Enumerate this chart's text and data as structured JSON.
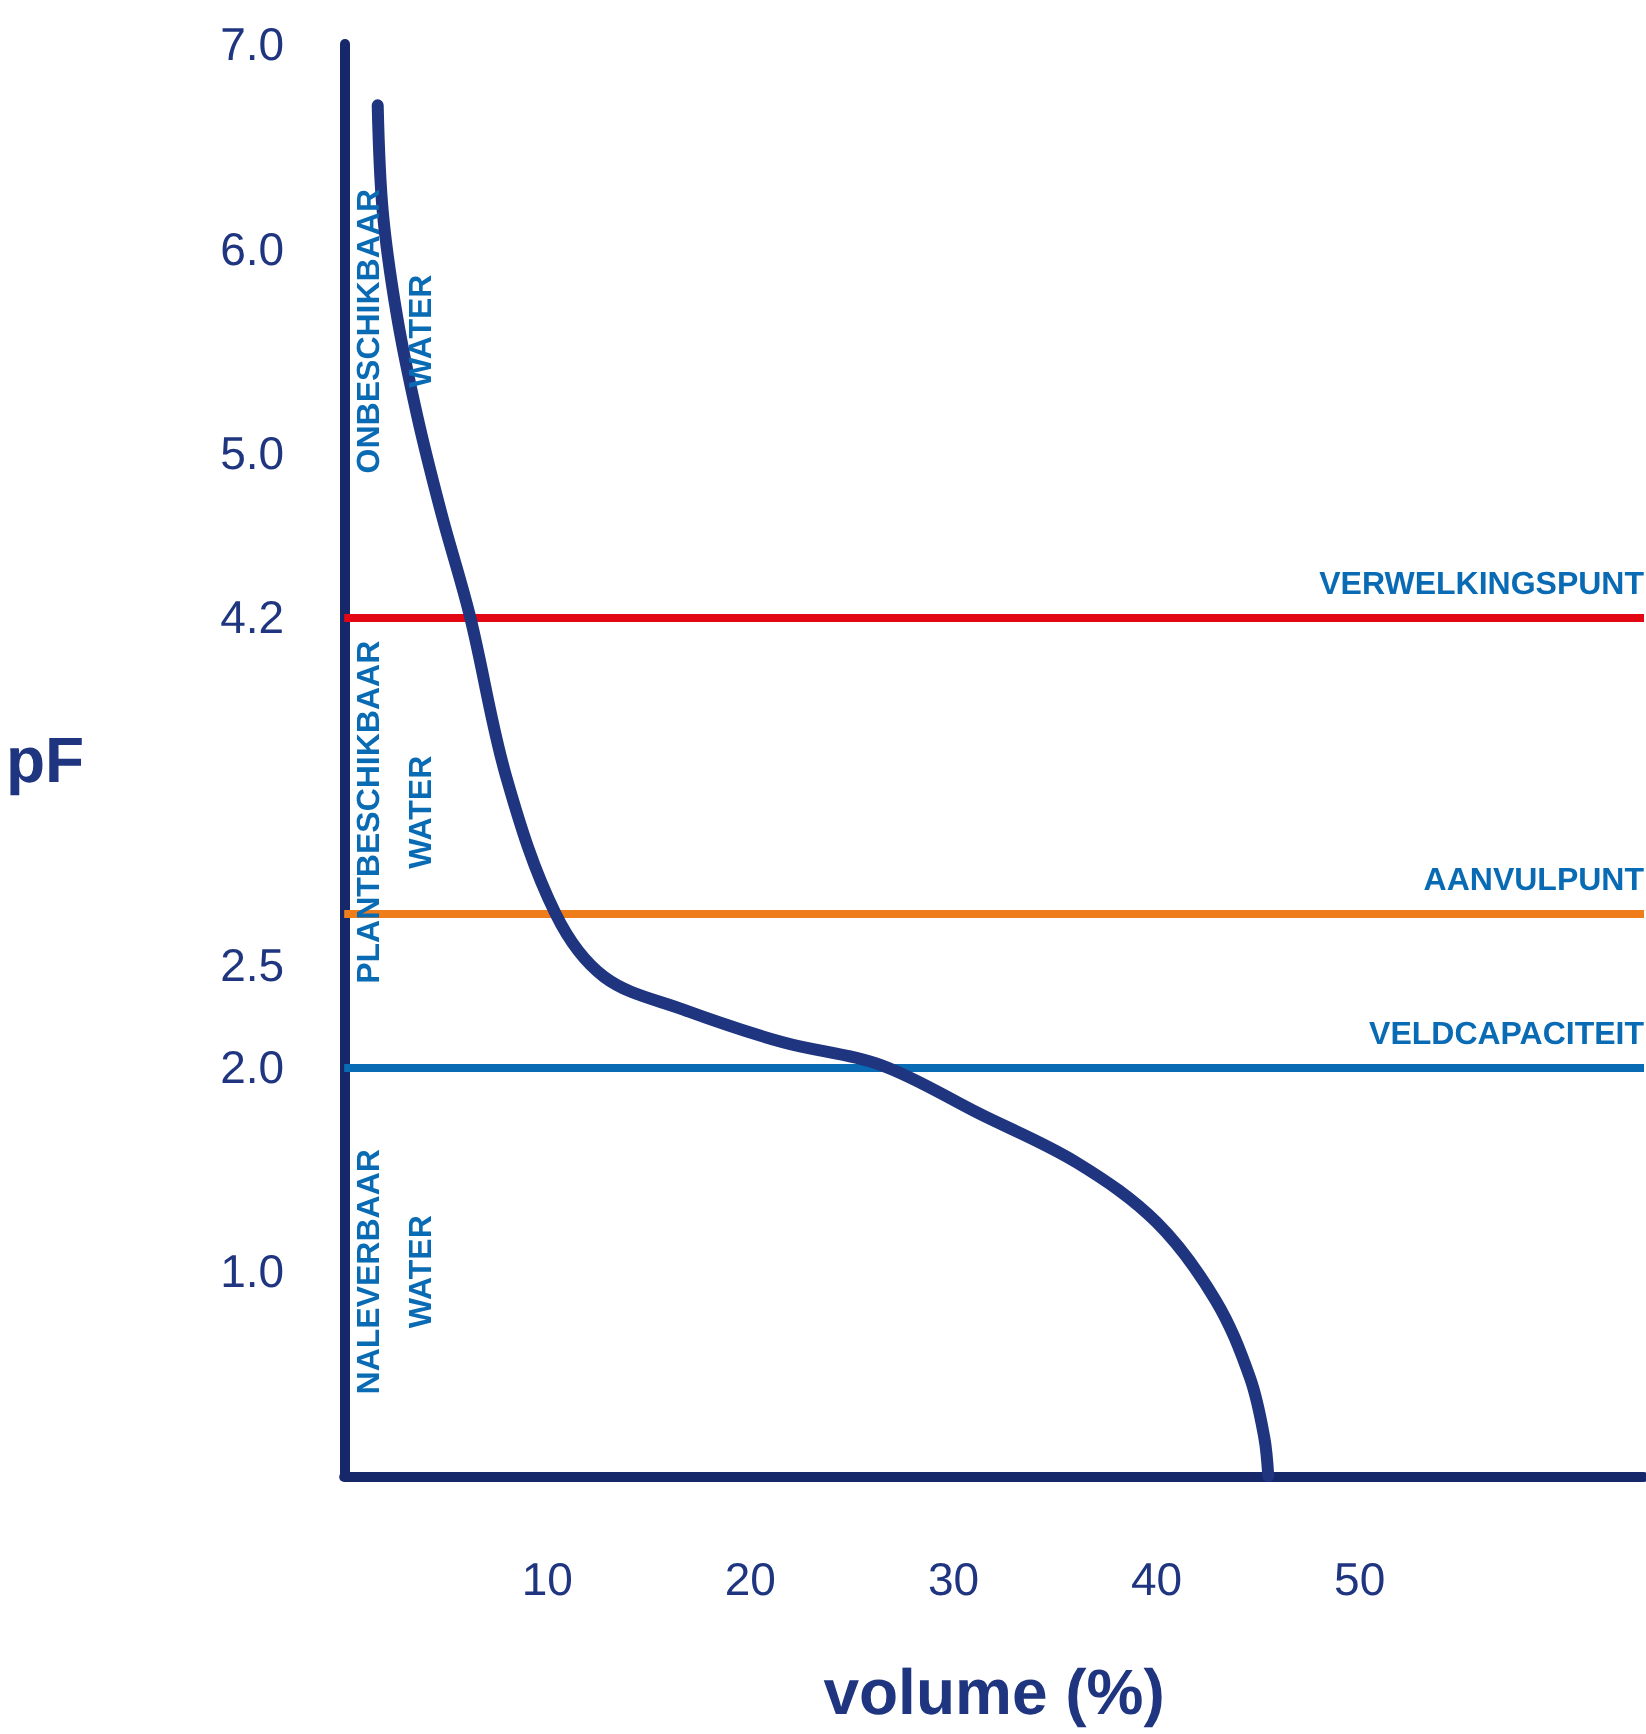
{
  "chart_data": {
    "type": "line",
    "xlabel": "volume (%)",
    "ylabel": "pF",
    "x": [
      1.65,
      1.9,
      2.6,
      3.6,
      4.8,
      6.2,
      8.0,
      10.4,
      12.8,
      16.7,
      21.6,
      26.4,
      31.3,
      36.1,
      40.0,
      42.9,
      44.6,
      45.3,
      45.5
    ],
    "series": [
      {
        "color": "#1f3580",
        "values": [
          6.7,
          6.18,
          5.67,
          5.18,
          4.7,
          4.2,
          3.41,
          2.75,
          2.44,
          2.28,
          2.12,
          2.01,
          1.77,
          1.53,
          1.24,
          0.86,
          0.48,
          0.19,
          0
        ]
      }
    ],
    "xlim": [
      0,
      64
    ],
    "xticks": [
      10,
      20,
      30,
      40,
      50
    ],
    "ylim": [
      0,
      7
    ],
    "yticks": [
      {
        "value": 7,
        "label": "7.0"
      },
      {
        "value": 6,
        "label": "6.0"
      },
      {
        "value": 5,
        "label": "5.0"
      },
      {
        "value": 4.2,
        "label": "4.2"
      },
      {
        "value": 2.5,
        "label": "2.5"
      },
      {
        "value": 2,
        "label": "2.0"
      },
      {
        "value": 1,
        "label": "1.0"
      }
    ],
    "ref_lines": [
      {
        "axis": "y",
        "value": 4.2,
        "label": "VERWELKINGSPUNT",
        "color": "#e30613"
      },
      {
        "axis": "y",
        "value": 2.75,
        "label": "AANVULPUNT",
        "color": "#ef7d1a"
      },
      {
        "axis": "y",
        "value": 2.0,
        "label": "VELDCAPACITEIT",
        "color": "#0a6bb5"
      }
    ],
    "annotations": [
      "ONBESCHIKBAAR\nWATER",
      "PLANTBESCHIKBAAR\nWATER",
      "NALEVERBAAR\nWATER"
    ],
    "grid": false,
    "marker": "none",
    "line_style": "solid"
  }
}
